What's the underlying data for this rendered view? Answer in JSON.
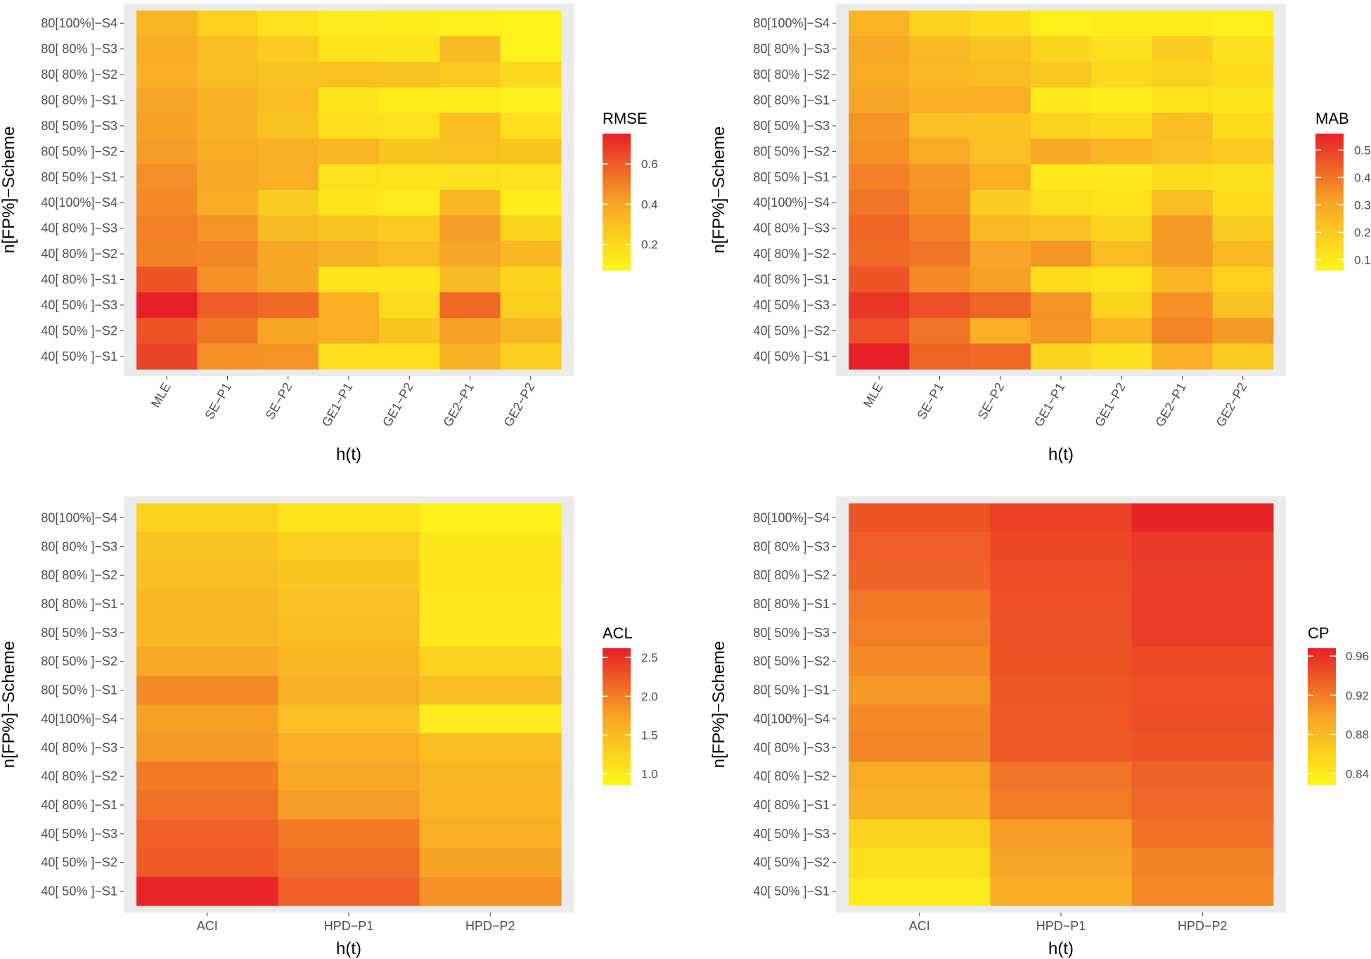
{
  "chart_data": [
    {
      "type": "heatmap",
      "title": "",
      "xlabel": "h(t)",
      "ylabel": "n[FP%]−Scheme",
      "legend_title": "RMSE",
      "legend_ticks": [
        "0.2",
        "0.4",
        "0.6"
      ],
      "legend_tick_values": [
        0.2,
        0.4,
        0.6
      ],
      "color_range": [
        0.07,
        0.75
      ],
      "x_categories": [
        "MLE",
        "SE−P1",
        "SE−P2",
        "GE1−P1",
        "GE1−P2",
        "GE2−P1",
        "GE2−P2"
      ],
      "y_categories": [
        "80[100%]−S4",
        "80[ 80% ]−S3",
        "80[ 80% ]−S2",
        "80[ 80% ]−S1",
        "80[ 50% ]−S3",
        "80[ 50% ]−S2",
        "80[ 50% ]−S1",
        "40[100%]−S4",
        "40[ 80% ]−S3",
        "40[ 80% ]−S2",
        "40[ 80% ]−S1",
        "40[ 50% ]−S3",
        "40[ 50% ]−S2",
        "40[ 50% ]−S1"
      ],
      "values": [
        [
          0.34,
          0.23,
          0.16,
          0.12,
          0.11,
          0.1,
          0.09
        ],
        [
          0.38,
          0.31,
          0.26,
          0.15,
          0.14,
          0.32,
          0.09
        ],
        [
          0.37,
          0.31,
          0.29,
          0.3,
          0.29,
          0.26,
          0.2
        ],
        [
          0.41,
          0.35,
          0.31,
          0.15,
          0.11,
          0.11,
          0.1
        ],
        [
          0.42,
          0.36,
          0.29,
          0.17,
          0.16,
          0.31,
          0.17
        ],
        [
          0.43,
          0.38,
          0.36,
          0.34,
          0.28,
          0.3,
          0.28
        ],
        [
          0.47,
          0.39,
          0.37,
          0.16,
          0.15,
          0.16,
          0.15
        ],
        [
          0.48,
          0.38,
          0.25,
          0.14,
          0.12,
          0.33,
          0.11
        ],
        [
          0.51,
          0.45,
          0.32,
          0.29,
          0.26,
          0.43,
          0.22
        ],
        [
          0.5,
          0.49,
          0.4,
          0.35,
          0.31,
          0.41,
          0.33
        ],
        [
          0.62,
          0.46,
          0.4,
          0.15,
          0.15,
          0.32,
          0.21
        ],
        [
          0.75,
          0.6,
          0.56,
          0.37,
          0.19,
          0.56,
          0.24
        ],
        [
          0.62,
          0.53,
          0.4,
          0.37,
          0.28,
          0.42,
          0.34
        ],
        [
          0.66,
          0.46,
          0.45,
          0.17,
          0.17,
          0.35,
          0.24
        ]
      ]
    },
    {
      "type": "heatmap",
      "title": "",
      "xlabel": "h(t)",
      "ylabel": "n[FP%]−Scheme",
      "legend_title": "MAB",
      "legend_ticks": [
        "0.1",
        "0.2",
        "0.3",
        "0.4",
        "0.5"
      ],
      "legend_tick_values": [
        0.1,
        0.2,
        0.3,
        0.4,
        0.5
      ],
      "color_range": [
        0.06,
        0.56
      ],
      "x_categories": [
        "MLE",
        "SE−P1",
        "SE−P2",
        "GE1−P1",
        "GE1−P2",
        "GE2−P1",
        "GE2−P2"
      ],
      "y_categories": [
        "80[100%]−S4",
        "80[ 80% ]−S3",
        "80[ 80% ]−S2",
        "80[ 80% ]−S1",
        "80[ 50% ]−S3",
        "80[ 50% ]−S2",
        "80[ 50% ]−S1",
        "40[100%]−S4",
        "40[ 80% ]−S3",
        "40[ 80% ]−S2",
        "40[ 80% ]−S1",
        "40[ 50% ]−S3",
        "40[ 50% ]−S2",
        "40[ 50% ]−S1"
      ],
      "values": [
        [
          0.26,
          0.17,
          0.14,
          0.08,
          0.09,
          0.09,
          0.08
        ],
        [
          0.3,
          0.25,
          0.22,
          0.16,
          0.13,
          0.19,
          0.13
        ],
        [
          0.29,
          0.25,
          0.24,
          0.21,
          0.15,
          0.17,
          0.14
        ],
        [
          0.31,
          0.28,
          0.28,
          0.1,
          0.09,
          0.12,
          0.11
        ],
        [
          0.34,
          0.23,
          0.22,
          0.17,
          0.15,
          0.24,
          0.14
        ],
        [
          0.35,
          0.29,
          0.23,
          0.3,
          0.26,
          0.23,
          0.2
        ],
        [
          0.38,
          0.34,
          0.28,
          0.1,
          0.1,
          0.14,
          0.13
        ],
        [
          0.4,
          0.35,
          0.19,
          0.13,
          0.12,
          0.24,
          0.14
        ],
        [
          0.43,
          0.38,
          0.25,
          0.23,
          0.17,
          0.33,
          0.19
        ],
        [
          0.42,
          0.4,
          0.31,
          0.34,
          0.24,
          0.33,
          0.25
        ],
        [
          0.46,
          0.36,
          0.32,
          0.14,
          0.12,
          0.26,
          0.18
        ],
        [
          0.52,
          0.47,
          0.43,
          0.34,
          0.17,
          0.35,
          0.22
        ],
        [
          0.47,
          0.4,
          0.28,
          0.34,
          0.26,
          0.37,
          0.33
        ],
        [
          0.56,
          0.43,
          0.42,
          0.16,
          0.13,
          0.28,
          0.2
        ]
      ]
    },
    {
      "type": "heatmap",
      "title": "",
      "xlabel": "h(t)",
      "ylabel": "n[FP%]−Scheme",
      "legend_title": "ACL",
      "legend_ticks": [
        "1.0",
        "1.5",
        "2.0",
        "2.5"
      ],
      "legend_tick_values": [
        1.0,
        1.5,
        2.0,
        2.5
      ],
      "color_range": [
        0.85,
        2.62
      ],
      "x_categories": [
        "ACI",
        "HPD−P1",
        "HPD−P2"
      ],
      "y_categories": [
        "80[100%]−S4",
        "80[ 80% ]−S3",
        "80[ 80% ]−S2",
        "80[ 80% ]−S1",
        "80[ 50% ]−S3",
        "80[ 50% ]−S2",
        "80[ 50% ]−S1",
        "40[100%]−S4",
        "40[ 80% ]−S3",
        "40[ 80% ]−S2",
        "40[ 80% ]−S1",
        "40[ 50% ]−S3",
        "40[ 50% ]−S2",
        "40[ 50% ]−S1"
      ],
      "values": [
        [
          1.25,
          1.05,
          0.92
        ],
        [
          1.42,
          1.3,
          1.02
        ],
        [
          1.47,
          1.4,
          1.02
        ],
        [
          1.53,
          1.45,
          1.0
        ],
        [
          1.53,
          1.48,
          1.0
        ],
        [
          1.69,
          1.55,
          1.25
        ],
        [
          1.92,
          1.61,
          1.47
        ],
        [
          1.77,
          1.45,
          0.98
        ],
        [
          1.81,
          1.64,
          1.48
        ],
        [
          2.03,
          1.7,
          1.53
        ],
        [
          2.09,
          1.79,
          1.56
        ],
        [
          2.19,
          2.02,
          1.63
        ],
        [
          2.24,
          2.11,
          1.75
        ],
        [
          2.58,
          2.19,
          1.87
        ]
      ]
    },
    {
      "type": "heatmap",
      "title": "",
      "xlabel": "h(t)",
      "ylabel": "n[FP%]−Scheme",
      "legend_title": "CP",
      "legend_ticks": [
        "0.84",
        "0.88",
        "0.92",
        "0.96"
      ],
      "legend_tick_values": [
        0.84,
        0.88,
        0.92,
        0.96
      ],
      "color_range": [
        0.828,
        0.968
      ],
      "x_categories": [
        "ACI",
        "HPD−P1",
        "HPD−P2"
      ],
      "y_categories": [
        "80[100%]−S4",
        "80[ 80% ]−S3",
        "80[ 80% ]−S2",
        "80[ 80% ]−S1",
        "80[ 50% ]−S3",
        "80[ 50% ]−S2",
        "80[ 50% ]−S1",
        "40[100%]−S4",
        "40[ 80% ]−S3",
        "40[ 80% ]−S2",
        "40[ 80% ]−S1",
        "40[ 50% ]−S3",
        "40[ 50% ]−S2",
        "40[ 50% ]−S1"
      ],
      "values": [
        [
          0.94,
          0.95,
          0.966
        ],
        [
          0.935,
          0.948,
          0.955
        ],
        [
          0.932,
          0.945,
          0.952
        ],
        [
          0.922,
          0.943,
          0.952
        ],
        [
          0.918,
          0.942,
          0.952
        ],
        [
          0.912,
          0.94,
          0.946
        ],
        [
          0.905,
          0.939,
          0.943
        ],
        [
          0.913,
          0.938,
          0.944
        ],
        [
          0.915,
          0.938,
          0.94
        ],
        [
          0.893,
          0.923,
          0.933
        ],
        [
          0.887,
          0.92,
          0.93
        ],
        [
          0.86,
          0.903,
          0.925
        ],
        [
          0.848,
          0.898,
          0.917
        ],
        [
          0.838,
          0.891,
          0.912
        ]
      ]
    }
  ]
}
